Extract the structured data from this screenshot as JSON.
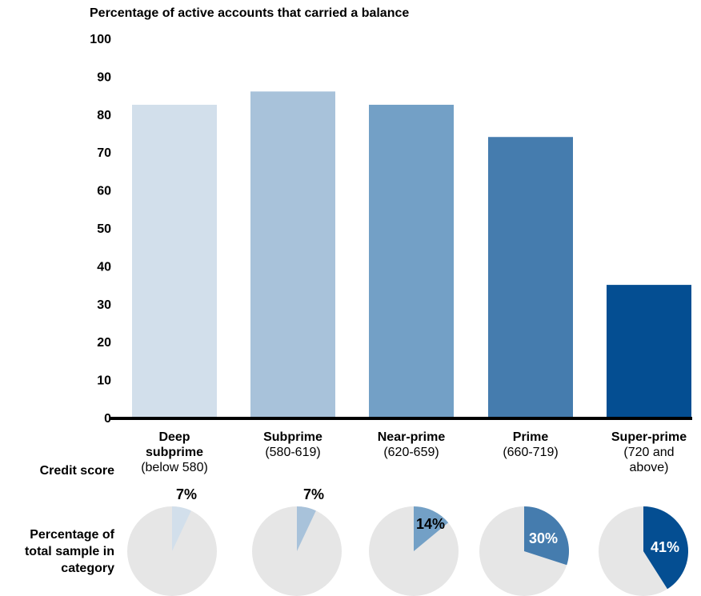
{
  "chart_data": {
    "type": "bar",
    "title": "Percentage of active accounts that carried a balance",
    "xlabel": "Credit score",
    "ylabel": "",
    "ylim": [
      0,
      100
    ],
    "yticks": [
      0,
      10,
      20,
      30,
      40,
      50,
      60,
      70,
      80,
      90,
      100
    ],
    "grid": false,
    "legend": "none",
    "categories": [
      {
        "name_lines": [
          "Deep",
          "subprime"
        ],
        "range_lines": [
          "(below 580)"
        ]
      },
      {
        "name_lines": [
          "Subprime"
        ],
        "range_lines": [
          "(580-619)"
        ]
      },
      {
        "name_lines": [
          "Near-prime"
        ],
        "range_lines": [
          "(620-659)"
        ]
      },
      {
        "name_lines": [
          "Prime"
        ],
        "range_lines": [
          "(660-719)"
        ]
      },
      {
        "name_lines": [
          "Super-prime"
        ],
        "range_lines": [
          "(720 and",
          "above)"
        ]
      }
    ],
    "values": [
      82.5,
      86,
      82.5,
      74,
      35
    ],
    "colors": [
      "#d2dfeb",
      "#a8c2da",
      "#73a0c6",
      "#457cae",
      "#044e92"
    ],
    "axis_color": "#000000",
    "pie_row": {
      "label_lines": [
        "Percentage of",
        "total sample in",
        "category"
      ],
      "values": [
        7,
        7,
        14,
        30,
        41
      ],
      "labels": [
        "7%",
        "7%",
        "14%",
        "30%",
        "41%"
      ],
      "label_colors": [
        "#000000",
        "#000000",
        "#000000",
        "#ffffff",
        "#ffffff"
      ],
      "background_color": "#e6e6e6"
    }
  }
}
